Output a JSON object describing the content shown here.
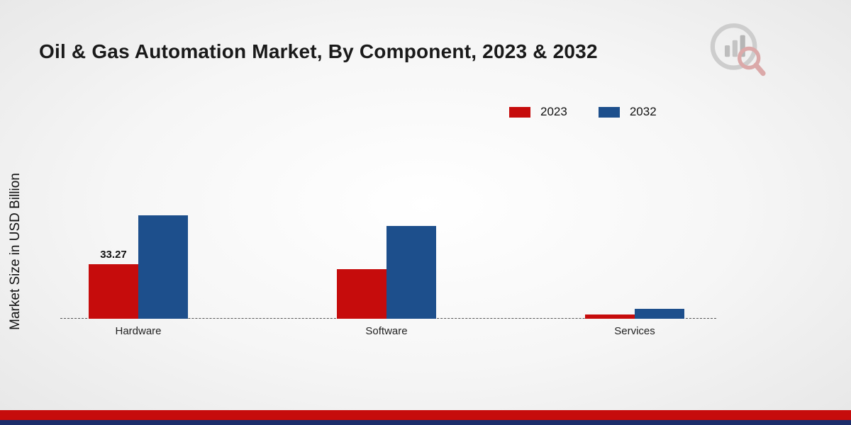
{
  "page": {
    "title": "Oil & Gas Automation Market, By Component, 2023 & 2032",
    "ylabel": "Market Size in USD Billion"
  },
  "colors": {
    "series_2023": "#c60c0c",
    "series_2032": "#1d4f8c",
    "footer_red": "#c60c0c",
    "footer_navy": "#1c2d6b",
    "baseline": "#555555",
    "logo_gray": "#c9c9c9",
    "logo_red": "#d98a8a"
  },
  "icons": {
    "logo": "bar-chart-magnifier-logo"
  },
  "chart_data": {
    "type": "bar",
    "title": "Oil & Gas Automation Market, By Component, 2023 & 2032",
    "xlabel": "",
    "ylabel": "Market Size in USD Billion",
    "categories": [
      "Hardware",
      "Software",
      "Services"
    ],
    "series": [
      {
        "name": "2023",
        "color": "#c60c0c",
        "values": [
          33.27,
          30.2,
          2.4
        ]
      },
      {
        "name": "2032",
        "color": "#1d4f8c",
        "values": [
          63.0,
          56.6,
          6.1
        ]
      }
    ],
    "annotations": [
      {
        "category": "Hardware",
        "series": "2023",
        "text": "33.27"
      }
    ],
    "ylim": [
      0,
      140
    ],
    "grid": false,
    "baseline_style": "dashed",
    "legend_position": "top-right"
  }
}
